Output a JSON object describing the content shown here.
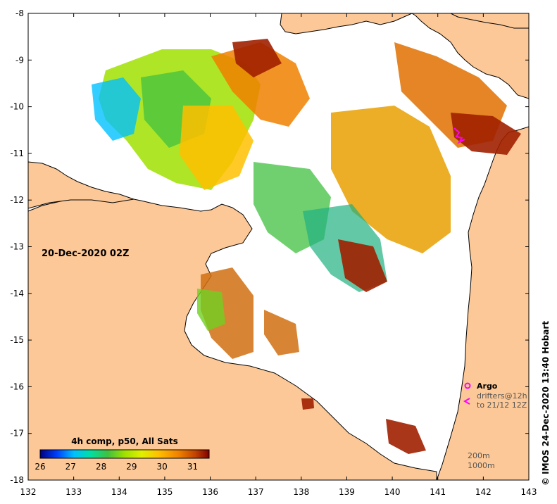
{
  "map": {
    "colors": {
      "land": "#fcc897",
      "sea_no_data": "#ffffff",
      "coastline": "#000000",
      "argo_marker": "#ff00ff",
      "drifter_track": "#ff00ff"
    },
    "axes": {
      "x_ticks": [
        "132",
        "133",
        "134",
        "135",
        "136",
        "137",
        "138",
        "139",
        "140",
        "141",
        "142",
        "143"
      ],
      "y_ticks": [
        "-8",
        "-9",
        "-10",
        "-11",
        "-12",
        "-13",
        "-14",
        "-15",
        "-16",
        "-17",
        "-18"
      ]
    },
    "date_label": "20-Dec-2020 02Z",
    "credit": "© IMOS 24-Dec-2020 13:40 Hobart",
    "legend": {
      "argo": "Argo",
      "drifters_line1": "drifters@12h",
      "drifters_line2": "to 21/12 12Z",
      "isobath_200": "200m",
      "isobath_1000": "1000m"
    },
    "colorbar": {
      "title": "4h comp, p50, All Sats",
      "tick_labels": [
        "26",
        "27",
        "28",
        "29",
        "30",
        "31"
      ],
      "palette": [
        "#00007f",
        "#0040ff",
        "#00c0ff",
        "#00e0a0",
        "#40c040",
        "#a0e000",
        "#e0f000",
        "#ffc000",
        "#f08000",
        "#c04000",
        "#800000"
      ]
    }
  }
}
